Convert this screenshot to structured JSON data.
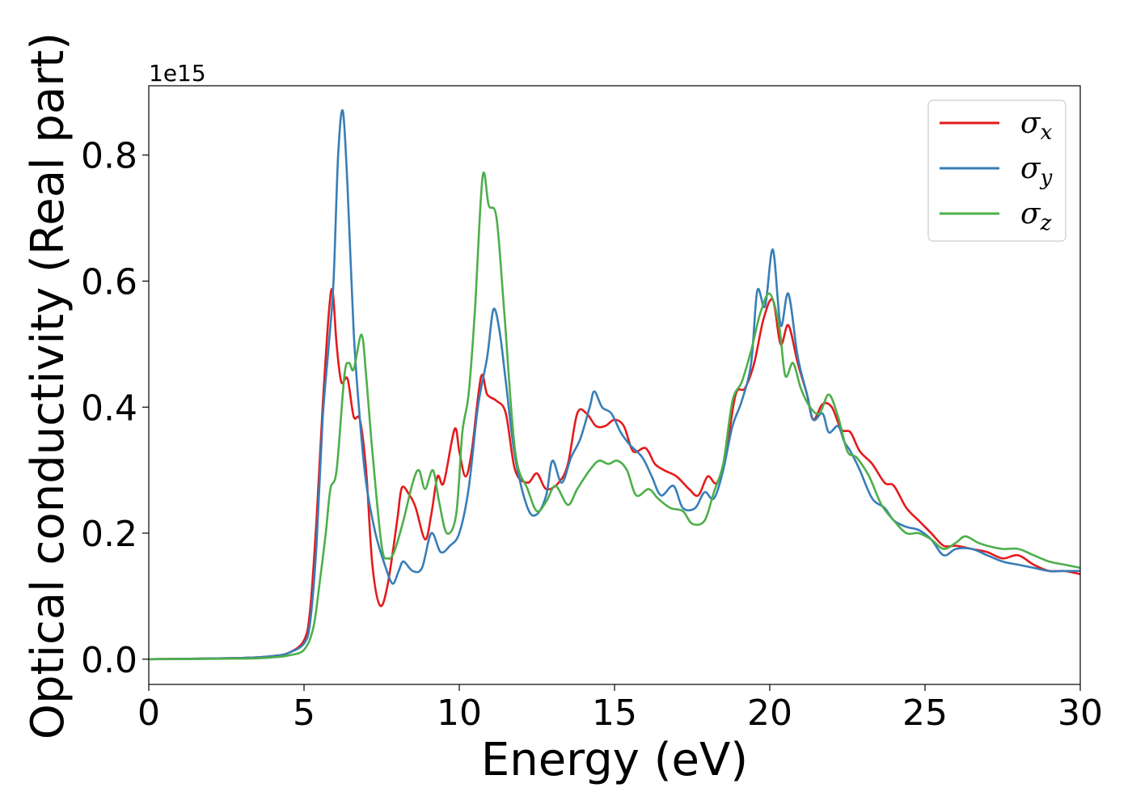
{
  "chart_data": {
    "type": "line",
    "xlabel": "Energy (eV)",
    "ylabel": "Optical conductivity (Real part)",
    "y_offset_label": "1e15",
    "xlim": [
      0,
      30
    ],
    "ylim": [
      -0.04,
      0.91
    ],
    "x_ticks": [
      0,
      5,
      10,
      15,
      20,
      25,
      30
    ],
    "y_ticks": [
      0.0,
      0.2,
      0.4,
      0.6,
      0.8
    ],
    "grid": false,
    "legend_position": "top-right",
    "series": [
      {
        "name": "σ_x",
        "symbol": "σ",
        "subscript": "x",
        "color": "#e41a1c",
        "points": [
          [
            0,
            0
          ],
          [
            3,
            0.002
          ],
          [
            4,
            0.005
          ],
          [
            4.5,
            0.01
          ],
          [
            5,
            0.03
          ],
          [
            5.2,
            0.08
          ],
          [
            5.4,
            0.22
          ],
          [
            5.6,
            0.4
          ],
          [
            5.8,
            0.55
          ],
          [
            5.92,
            0.585
          ],
          [
            6.05,
            0.5
          ],
          [
            6.2,
            0.44
          ],
          [
            6.4,
            0.445
          ],
          [
            6.6,
            0.385
          ],
          [
            6.8,
            0.38
          ],
          [
            7.0,
            0.3
          ],
          [
            7.2,
            0.15
          ],
          [
            7.45,
            0.085
          ],
          [
            7.7,
            0.12
          ],
          [
            8.0,
            0.22
          ],
          [
            8.15,
            0.272
          ],
          [
            8.4,
            0.26
          ],
          [
            8.6,
            0.24
          ],
          [
            8.9,
            0.19
          ],
          [
            9.1,
            0.23
          ],
          [
            9.3,
            0.29
          ],
          [
            9.5,
            0.28
          ],
          [
            9.85,
            0.365
          ],
          [
            10.0,
            0.33
          ],
          [
            10.2,
            0.29
          ],
          [
            10.4,
            0.33
          ],
          [
            10.7,
            0.448
          ],
          [
            10.9,
            0.42
          ],
          [
            11.2,
            0.41
          ],
          [
            11.5,
            0.39
          ],
          [
            11.8,
            0.3
          ],
          [
            12.2,
            0.28
          ],
          [
            12.5,
            0.295
          ],
          [
            12.8,
            0.27
          ],
          [
            13.2,
            0.28
          ],
          [
            13.5,
            0.31
          ],
          [
            13.8,
            0.39
          ],
          [
            14.1,
            0.39
          ],
          [
            14.4,
            0.37
          ],
          [
            14.7,
            0.37
          ],
          [
            15.0,
            0.38
          ],
          [
            15.3,
            0.37
          ],
          [
            15.6,
            0.33
          ],
          [
            16.0,
            0.335
          ],
          [
            16.3,
            0.31
          ],
          [
            16.6,
            0.3
          ],
          [
            17.0,
            0.29
          ],
          [
            17.4,
            0.27
          ],
          [
            17.7,
            0.26
          ],
          [
            18.0,
            0.29
          ],
          [
            18.3,
            0.28
          ],
          [
            18.6,
            0.33
          ],
          [
            18.9,
            0.42
          ],
          [
            19.2,
            0.43
          ],
          [
            19.5,
            0.47
          ],
          [
            19.8,
            0.54
          ],
          [
            20.1,
            0.57
          ],
          [
            20.35,
            0.5
          ],
          [
            20.6,
            0.53
          ],
          [
            20.9,
            0.47
          ],
          [
            21.2,
            0.42
          ],
          [
            21.4,
            0.38
          ],
          [
            21.7,
            0.405
          ],
          [
            22.0,
            0.4
          ],
          [
            22.3,
            0.365
          ],
          [
            22.6,
            0.36
          ],
          [
            22.9,
            0.33
          ],
          [
            23.3,
            0.31
          ],
          [
            23.7,
            0.28
          ],
          [
            24.0,
            0.275
          ],
          [
            24.4,
            0.24
          ],
          [
            24.8,
            0.22
          ],
          [
            25.2,
            0.2
          ],
          [
            25.6,
            0.18
          ],
          [
            26.0,
            0.18
          ],
          [
            26.5,
            0.175
          ],
          [
            27.0,
            0.17
          ],
          [
            27.5,
            0.16
          ],
          [
            28.0,
            0.165
          ],
          [
            28.5,
            0.15
          ],
          [
            29.0,
            0.14
          ],
          [
            29.5,
            0.14
          ],
          [
            30.0,
            0.135
          ]
        ]
      },
      {
        "name": "σ_y",
        "symbol": "σ",
        "subscript": "y",
        "color": "#377eb8",
        "points": [
          [
            0,
            0
          ],
          [
            3,
            0.002
          ],
          [
            4,
            0.005
          ],
          [
            4.5,
            0.01
          ],
          [
            5,
            0.025
          ],
          [
            5.2,
            0.06
          ],
          [
            5.4,
            0.18
          ],
          [
            5.6,
            0.38
          ],
          [
            5.8,
            0.5
          ],
          [
            5.95,
            0.6
          ],
          [
            6.1,
            0.8
          ],
          [
            6.25,
            0.87
          ],
          [
            6.4,
            0.75
          ],
          [
            6.6,
            0.52
          ],
          [
            6.8,
            0.38
          ],
          [
            7.0,
            0.28
          ],
          [
            7.3,
            0.2
          ],
          [
            7.6,
            0.15
          ],
          [
            7.85,
            0.12
          ],
          [
            8.05,
            0.14
          ],
          [
            8.2,
            0.155
          ],
          [
            8.5,
            0.14
          ],
          [
            8.8,
            0.145
          ],
          [
            9.1,
            0.2
          ],
          [
            9.4,
            0.17
          ],
          [
            9.7,
            0.18
          ],
          [
            10.0,
            0.2
          ],
          [
            10.3,
            0.27
          ],
          [
            10.6,
            0.4
          ],
          [
            10.9,
            0.48
          ],
          [
            11.1,
            0.555
          ],
          [
            11.3,
            0.52
          ],
          [
            11.5,
            0.44
          ],
          [
            11.8,
            0.32
          ],
          [
            12.2,
            0.24
          ],
          [
            12.5,
            0.23
          ],
          [
            12.8,
            0.26
          ],
          [
            13.0,
            0.315
          ],
          [
            13.3,
            0.28
          ],
          [
            13.6,
            0.32
          ],
          [
            13.9,
            0.35
          ],
          [
            14.2,
            0.4
          ],
          [
            14.35,
            0.425
          ],
          [
            14.6,
            0.4
          ],
          [
            14.9,
            0.39
          ],
          [
            15.2,
            0.36
          ],
          [
            15.5,
            0.34
          ],
          [
            15.9,
            0.32
          ],
          [
            16.2,
            0.29
          ],
          [
            16.5,
            0.26
          ],
          [
            16.9,
            0.275
          ],
          [
            17.2,
            0.24
          ],
          [
            17.6,
            0.24
          ],
          [
            17.9,
            0.265
          ],
          [
            18.2,
            0.255
          ],
          [
            18.5,
            0.3
          ],
          [
            18.8,
            0.37
          ],
          [
            19.1,
            0.41
          ],
          [
            19.4,
            0.47
          ],
          [
            19.6,
            0.585
          ],
          [
            19.85,
            0.56
          ],
          [
            20.1,
            0.65
          ],
          [
            20.35,
            0.53
          ],
          [
            20.6,
            0.58
          ],
          [
            20.9,
            0.48
          ],
          [
            21.2,
            0.42
          ],
          [
            21.4,
            0.38
          ],
          [
            21.7,
            0.39
          ],
          [
            21.9,
            0.36
          ],
          [
            22.2,
            0.37
          ],
          [
            22.4,
            0.345
          ],
          [
            22.6,
            0.33
          ],
          [
            22.9,
            0.3
          ],
          [
            23.3,
            0.255
          ],
          [
            23.7,
            0.24
          ],
          [
            24.0,
            0.22
          ],
          [
            24.4,
            0.21
          ],
          [
            24.8,
            0.205
          ],
          [
            25.2,
            0.19
          ],
          [
            25.6,
            0.165
          ],
          [
            26.0,
            0.175
          ],
          [
            26.5,
            0.175
          ],
          [
            27.0,
            0.165
          ],
          [
            27.5,
            0.155
          ],
          [
            28.0,
            0.15
          ],
          [
            28.5,
            0.145
          ],
          [
            29.0,
            0.14
          ],
          [
            29.5,
            0.14
          ],
          [
            30.0,
            0.14
          ]
        ]
      },
      {
        "name": "σ_z",
        "symbol": "σ",
        "subscript": "z",
        "color": "#4daf4a",
        "points": [
          [
            0,
            0
          ],
          [
            3,
            0.001
          ],
          [
            4,
            0.003
          ],
          [
            4.5,
            0.006
          ],
          [
            5,
            0.015
          ],
          [
            5.3,
            0.05
          ],
          [
            5.5,
            0.12
          ],
          [
            5.7,
            0.2
          ],
          [
            5.85,
            0.27
          ],
          [
            6.05,
            0.3
          ],
          [
            6.3,
            0.45
          ],
          [
            6.45,
            0.47
          ],
          [
            6.6,
            0.46
          ],
          [
            6.85,
            0.515
          ],
          [
            7.0,
            0.45
          ],
          [
            7.2,
            0.33
          ],
          [
            7.5,
            0.18
          ],
          [
            7.7,
            0.16
          ],
          [
            7.9,
            0.17
          ],
          [
            8.2,
            0.22
          ],
          [
            8.5,
            0.28
          ],
          [
            8.7,
            0.3
          ],
          [
            8.9,
            0.27
          ],
          [
            9.15,
            0.3
          ],
          [
            9.35,
            0.25
          ],
          [
            9.6,
            0.2
          ],
          [
            9.9,
            0.23
          ],
          [
            10.1,
            0.36
          ],
          [
            10.3,
            0.42
          ],
          [
            10.5,
            0.55
          ],
          [
            10.75,
            0.765
          ],
          [
            10.95,
            0.72
          ],
          [
            11.2,
            0.7
          ],
          [
            11.45,
            0.55
          ],
          [
            11.8,
            0.33
          ],
          [
            12.2,
            0.27
          ],
          [
            12.5,
            0.235
          ],
          [
            12.8,
            0.25
          ],
          [
            13.1,
            0.275
          ],
          [
            13.5,
            0.245
          ],
          [
            13.8,
            0.27
          ],
          [
            14.2,
            0.3
          ],
          [
            14.5,
            0.315
          ],
          [
            14.8,
            0.31
          ],
          [
            15.1,
            0.315
          ],
          [
            15.4,
            0.3
          ],
          [
            15.7,
            0.26
          ],
          [
            16.1,
            0.27
          ],
          [
            16.4,
            0.255
          ],
          [
            16.8,
            0.24
          ],
          [
            17.2,
            0.235
          ],
          [
            17.5,
            0.215
          ],
          [
            17.9,
            0.22
          ],
          [
            18.2,
            0.265
          ],
          [
            18.5,
            0.31
          ],
          [
            18.8,
            0.41
          ],
          [
            19.1,
            0.44
          ],
          [
            19.4,
            0.49
          ],
          [
            19.7,
            0.55
          ],
          [
            20.0,
            0.58
          ],
          [
            20.3,
            0.53
          ],
          [
            20.5,
            0.45
          ],
          [
            20.75,
            0.47
          ],
          [
            21.0,
            0.43
          ],
          [
            21.3,
            0.4
          ],
          [
            21.6,
            0.39
          ],
          [
            21.9,
            0.42
          ],
          [
            22.2,
            0.385
          ],
          [
            22.5,
            0.33
          ],
          [
            22.8,
            0.32
          ],
          [
            23.2,
            0.29
          ],
          [
            23.6,
            0.245
          ],
          [
            24.0,
            0.22
          ],
          [
            24.4,
            0.2
          ],
          [
            24.8,
            0.2
          ],
          [
            25.2,
            0.19
          ],
          [
            25.6,
            0.175
          ],
          [
            26.0,
            0.185
          ],
          [
            26.3,
            0.195
          ],
          [
            26.7,
            0.185
          ],
          [
            27.0,
            0.18
          ],
          [
            27.5,
            0.175
          ],
          [
            28.0,
            0.175
          ],
          [
            28.5,
            0.165
          ],
          [
            29.0,
            0.155
          ],
          [
            29.5,
            0.15
          ],
          [
            30.0,
            0.145
          ]
        ]
      }
    ]
  }
}
